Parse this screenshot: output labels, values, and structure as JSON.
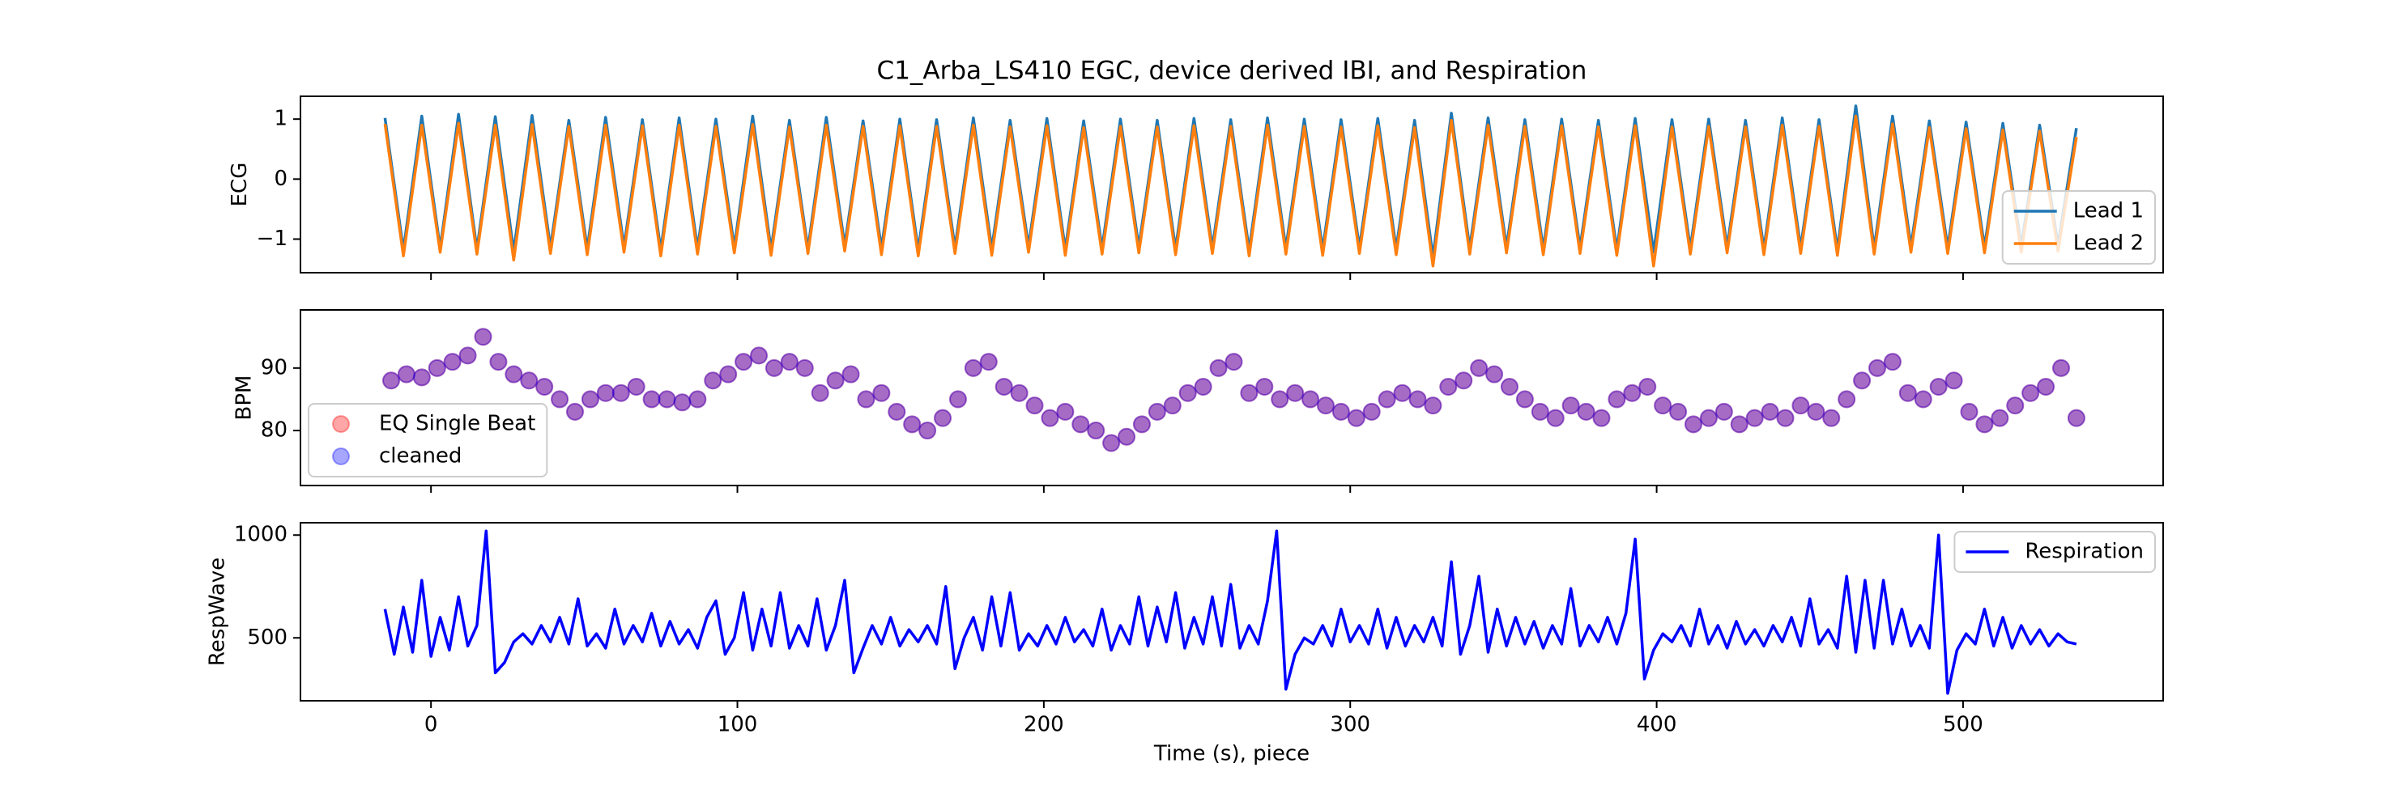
{
  "chart_data": [
    {
      "type": "line",
      "title": "C1_Arba_LS410 EGC, device derived IBI, and Respiration",
      "ylabel": "ECG",
      "xlim": [
        -42.6,
        565.3
      ],
      "xticks": [
        0,
        100,
        200,
        300,
        400,
        500
      ],
      "ylim": [
        -1.56,
        1.38
      ],
      "yticks": [
        {
          "value": -1,
          "label": "−1"
        },
        0,
        1
      ],
      "legend": "lower right",
      "x": [
        -15,
        -9,
        -3,
        3,
        9,
        15,
        21,
        27,
        33,
        39,
        45,
        51,
        57,
        63,
        69,
        75,
        81,
        87,
        93,
        99,
        105,
        111,
        117,
        123,
        129,
        135,
        141,
        147,
        153,
        159,
        165,
        171,
        177,
        183,
        189,
        195,
        201,
        207,
        213,
        219,
        225,
        231,
        237,
        243,
        249,
        255,
        261,
        267,
        273,
        279,
        285,
        291,
        297,
        303,
        309,
        315,
        321,
        327,
        333,
        339,
        345,
        351,
        357,
        363,
        369,
        375,
        381,
        387,
        393,
        399,
        405,
        411,
        417,
        423,
        429,
        435,
        441,
        447,
        453,
        459,
        465,
        471,
        477,
        483,
        489,
        495,
        501,
        507,
        513,
        519,
        525,
        531,
        537
      ],
      "series": [
        {
          "name": "Lead 1",
          "color": "#1f77b4",
          "values": [
            1.02,
            -1.18,
            1.05,
            -1.15,
            1.08,
            -1.17,
            1.04,
            -1.2,
            1.06,
            -1.14,
            0.98,
            -1.16,
            1.03,
            -1.12,
            0.99,
            -1.18,
            1.02,
            -1.15,
            1.0,
            -1.13,
            1.05,
            -1.17,
            0.98,
            -1.16,
            1.03,
            -1.1,
            0.97,
            -1.15,
            1.0,
            -1.18,
            0.99,
            -1.14,
            1.02,
            -1.16,
            0.98,
            -1.12,
            1.01,
            -1.17,
            0.97,
            -1.15,
            1.0,
            -1.13,
            0.98,
            -1.16,
            1.01,
            -1.14,
            0.99,
            -1.18,
            1.02,
            -1.15,
            1.0,
            -1.17,
            0.99,
            -1.14,
            1.01,
            -1.16,
            0.98,
            -1.3,
            1.1,
            -1.15,
            1.02,
            -1.13,
            0.99,
            -1.16,
            1.0,
            -1.14,
            0.98,
            -1.17,
            1.01,
            -1.22,
            0.99,
            -1.15,
            1.0,
            -1.13,
            0.98,
            -1.16,
            1.02,
            -1.14,
            0.99,
            -1.17,
            1.22,
            -1.15,
            1.05,
            -1.12,
            0.97,
            -1.14,
            0.95,
            -1.13,
            0.93,
            -1.12,
            0.9,
            -1.1,
            0.85
          ]
        },
        {
          "name": "Lead 2",
          "color": "#ff7f0e",
          "values": [
            0.92,
            -1.28,
            0.9,
            -1.22,
            0.93,
            -1.25,
            0.9,
            -1.35,
            0.91,
            -1.24,
            0.88,
            -1.26,
            0.9,
            -1.22,
            0.89,
            -1.28,
            0.9,
            -1.25,
            0.88,
            -1.23,
            0.91,
            -1.27,
            0.87,
            -1.24,
            0.9,
            -1.2,
            0.88,
            -1.26,
            0.89,
            -1.28,
            0.88,
            -1.24,
            0.9,
            -1.27,
            0.87,
            -1.22,
            0.89,
            -1.27,
            0.86,
            -1.25,
            0.88,
            -1.23,
            0.87,
            -1.26,
            0.89,
            -1.24,
            0.88,
            -1.28,
            0.9,
            -1.25,
            0.88,
            -1.27,
            0.87,
            -1.24,
            0.89,
            -1.26,
            0.86,
            -1.45,
            0.98,
            -1.25,
            0.9,
            -1.23,
            0.88,
            -1.26,
            0.89,
            -1.24,
            0.87,
            -1.27,
            0.89,
            -1.45,
            0.87,
            -1.25,
            0.88,
            -1.23,
            0.87,
            -1.26,
            0.9,
            -1.24,
            0.88,
            -1.27,
            1.05,
            -1.25,
            0.92,
            -1.22,
            0.86,
            -1.24,
            0.84,
            -1.23,
            0.82,
            -1.22,
            0.8,
            -1.2,
            0.7
          ]
        }
      ]
    },
    {
      "type": "scatter",
      "ylabel": "BPM",
      "alpha": 0.35,
      "xlim": [
        -42.6,
        565.3
      ],
      "xticks": [
        0,
        100,
        200,
        300,
        400,
        500
      ],
      "ylim": [
        71.2,
        99.3
      ],
      "yticks": [
        80,
        90
      ],
      "legend": "lower left",
      "x": [
        -13,
        -8,
        -3,
        2,
        7,
        12,
        17,
        22,
        27,
        32,
        37,
        42,
        47,
        52,
        57,
        62,
        67,
        72,
        77,
        82,
        87,
        92,
        97,
        102,
        107,
        112,
        117,
        122,
        127,
        132,
        137,
        142,
        147,
        152,
        157,
        162,
        167,
        172,
        177,
        182,
        187,
        192,
        197,
        202,
        207,
        212,
        217,
        222,
        227,
        232,
        237,
        242,
        247,
        252,
        257,
        262,
        267,
        272,
        277,
        282,
        287,
        292,
        297,
        302,
        307,
        312,
        317,
        322,
        327,
        332,
        337,
        342,
        347,
        352,
        357,
        362,
        367,
        372,
        377,
        382,
        387,
        392,
        397,
        402,
        407,
        412,
        417,
        422,
        427,
        432,
        437,
        442,
        447,
        452,
        457,
        462,
        467,
        472,
        477,
        482,
        487,
        492,
        497,
        502,
        507,
        512,
        517,
        522,
        527,
        532,
        537
      ],
      "series": [
        {
          "name": "EQ Single Beat",
          "color": "red",
          "values": [
            88,
            89,
            88.5,
            90,
            91,
            92,
            95,
            91,
            89,
            88,
            87,
            85,
            83,
            85,
            86,
            86,
            87,
            85,
            85,
            84.5,
            85,
            88,
            89,
            91,
            92,
            90,
            91,
            90,
            86,
            88,
            89,
            85,
            86,
            83,
            81,
            80,
            82,
            85,
            90,
            91,
            87,
            86,
            84,
            82,
            83,
            81,
            80,
            78,
            79,
            81,
            83,
            84,
            86,
            87,
            90,
            91,
            86,
            87,
            85,
            86,
            85,
            84,
            83,
            82,
            83,
            85,
            86,
            85,
            84,
            87,
            88,
            90,
            89,
            87,
            85,
            83,
            82,
            84,
            83,
            82,
            85,
            86,
            87,
            84,
            83,
            81,
            82,
            83,
            81,
            82,
            83,
            82,
            84,
            83,
            82,
            85,
            88,
            90,
            91,
            86,
            85,
            87,
            88,
            83,
            81,
            82,
            84,
            86,
            87,
            90,
            82
          ]
        },
        {
          "name": "cleaned",
          "color": "blue",
          "values": [
            88,
            89,
            88.5,
            90,
            91,
            92,
            95,
            91,
            89,
            88,
            87,
            85,
            83,
            85,
            86,
            86,
            87,
            85,
            85,
            84.5,
            85,
            88,
            89,
            91,
            92,
            90,
            91,
            90,
            86,
            88,
            89,
            85,
            86,
            83,
            81,
            80,
            82,
            85,
            90,
            91,
            87,
            86,
            84,
            82,
            83,
            81,
            80,
            78,
            79,
            81,
            83,
            84,
            86,
            87,
            90,
            91,
            86,
            87,
            85,
            86,
            85,
            84,
            83,
            82,
            83,
            85,
            86,
            85,
            84,
            87,
            88,
            90,
            89,
            87,
            85,
            83,
            82,
            84,
            83,
            82,
            85,
            86,
            87,
            84,
            83,
            81,
            82,
            83,
            81,
            82,
            83,
            82,
            84,
            83,
            82,
            85,
            88,
            90,
            91,
            86,
            85,
            87,
            88,
            83,
            81,
            82,
            84,
            86,
            87,
            90,
            82
          ]
        }
      ]
    },
    {
      "type": "line",
      "ylabel": "RespWave",
      "xlabel": "Time (s), piece",
      "xlim": [
        -42.6,
        565.3
      ],
      "xticks": [
        0,
        100,
        200,
        300,
        400,
        500
      ],
      "ylim": [
        194,
        1060
      ],
      "yticks": [
        500,
        1000
      ],
      "legend": "upper right",
      "x": [
        -15,
        -12,
        -9,
        -6,
        -3,
        0,
        3,
        6,
        9,
        12,
        15,
        18,
        21,
        24,
        27,
        30,
        33,
        36,
        39,
        42,
        45,
        48,
        51,
        54,
        57,
        60,
        63,
        66,
        69,
        72,
        75,
        78,
        81,
        84,
        87,
        90,
        93,
        96,
        99,
        102,
        105,
        108,
        111,
        114,
        117,
        120,
        123,
        126,
        129,
        132,
        135,
        138,
        141,
        144,
        147,
        150,
        153,
        156,
        159,
        162,
        165,
        168,
        171,
        174,
        177,
        180,
        183,
        186,
        189,
        192,
        195,
        198,
        201,
        204,
        207,
        210,
        213,
        216,
        219,
        222,
        225,
        228,
        231,
        234,
        237,
        240,
        243,
        246,
        249,
        252,
        255,
        258,
        261,
        264,
        267,
        270,
        273,
        276,
        279,
        282,
        285,
        288,
        291,
        294,
        297,
        300,
        303,
        306,
        309,
        312,
        315,
        318,
        321,
        324,
        327,
        330,
        333,
        336,
        339,
        342,
        345,
        348,
        351,
        354,
        357,
        360,
        363,
        366,
        369,
        372,
        375,
        378,
        381,
        384,
        387,
        390,
        393,
        396,
        399,
        402,
        405,
        408,
        411,
        414,
        417,
        420,
        423,
        426,
        429,
        432,
        435,
        438,
        441,
        444,
        447,
        450,
        453,
        456,
        459,
        462,
        465,
        468,
        471,
        474,
        477,
        480,
        483,
        486,
        489,
        492,
        495,
        498,
        501,
        504,
        507,
        510,
        513,
        516,
        519,
        522,
        525,
        528,
        531,
        534,
        537
      ],
      "series": [
        {
          "name": "Respiration",
          "color": "blue",
          "values": [
            640,
            420,
            650,
            430,
            780,
            410,
            600,
            440,
            700,
            460,
            560,
            1020,
            330,
            380,
            480,
            520,
            470,
            560,
            480,
            600,
            470,
            690,
            460,
            520,
            450,
            640,
            470,
            560,
            480,
            620,
            460,
            580,
            470,
            540,
            450,
            600,
            680,
            420,
            500,
            720,
            440,
            640,
            460,
            720,
            450,
            560,
            460,
            690,
            440,
            560,
            780,
            330,
            450,
            560,
            470,
            600,
            460,
            540,
            480,
            560,
            470,
            750,
            350,
            500,
            600,
            440,
            700,
            460,
            720,
            440,
            520,
            460,
            560,
            470,
            600,
            480,
            540,
            460,
            640,
            440,
            560,
            470,
            700,
            460,
            650,
            480,
            720,
            450,
            600,
            470,
            700,
            460,
            760,
            450,
            560,
            470,
            680,
            1020,
            250,
            420,
            500,
            470,
            560,
            460,
            640,
            480,
            560,
            470,
            640,
            450,
            600,
            460,
            560,
            480,
            600,
            460,
            870,
            420,
            560,
            800,
            430,
            640,
            460,
            600,
            470,
            580,
            450,
            560,
            470,
            740,
            460,
            560,
            480,
            600,
            470,
            620,
            980,
            300,
            440,
            520,
            480,
            560,
            460,
            640,
            470,
            560,
            450,
            580,
            470,
            540,
            460,
            560,
            480,
            600,
            460,
            690,
            470,
            540,
            450,
            800,
            430,
            780,
            450,
            780,
            470,
            640,
            460,
            560,
            450,
            1000,
            230,
            440,
            520,
            470,
            640,
            460,
            600,
            450,
            560,
            470,
            540,
            460,
            520,
            480,
            470
          ]
        }
      ]
    }
  ]
}
